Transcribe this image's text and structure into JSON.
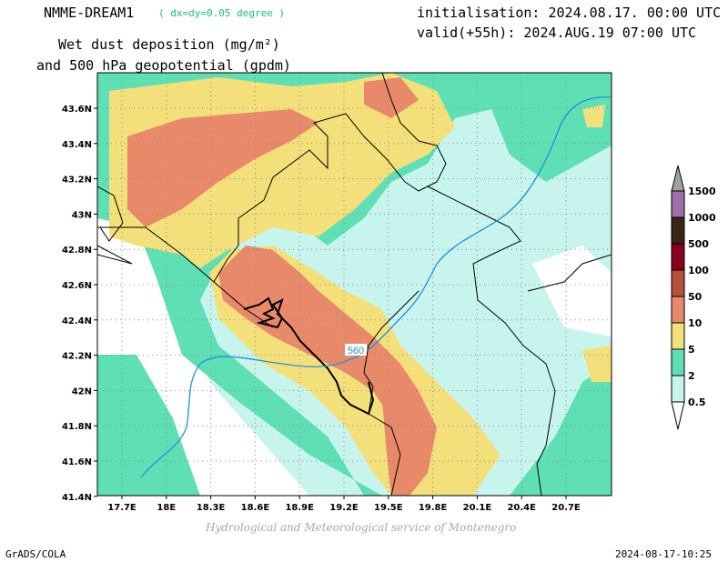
{
  "header": {
    "model": "NMME-DREAM1",
    "resolution": "( dx=dy=0.05 degree )",
    "init": "initialisation: 2024.08.17. 00:00 UTC",
    "valid": "valid(+55h): 2024.AUG.19 07:00 UTC",
    "variable_line1": "Wet dust deposition (mg/m²)",
    "variable_line2": "and 500 hPa geopotential (gpdm)"
  },
  "map": {
    "lat_labels": [
      "43.6N",
      "43.4N",
      "43.2N",
      "43N",
      "42.8N",
      "42.6N",
      "42.4N",
      "42.2N",
      "42N",
      "41.8N",
      "41.6N",
      "41.4N"
    ],
    "lon_labels": [
      "17.7E",
      "18E",
      "18.3E",
      "18.6E",
      "18.9E",
      "19.2E",
      "19.5E",
      "19.8E",
      "20.1E",
      "20.4E",
      "20.7E"
    ],
    "contour_label": "560",
    "contour_color": "#1e90e0"
  },
  "legend": {
    "levels": [
      "1500",
      "1000",
      "500",
      "100",
      "50",
      "10",
      "5",
      "2",
      "0.5"
    ],
    "colors": [
      "#a0a0a0",
      "#9c6fa8",
      "#3a2414",
      "#8a0020",
      "#b4503c",
      "#e8896a",
      "#f4e07a",
      "#5fe0b4",
      "#c8f4ee",
      "#ffffff"
    ]
  },
  "footer": {
    "credit": "Hydrological and Meteorological service of Montenegro",
    "left": "GrADS/COLA",
    "right": "2024-08-17-10:25"
  }
}
